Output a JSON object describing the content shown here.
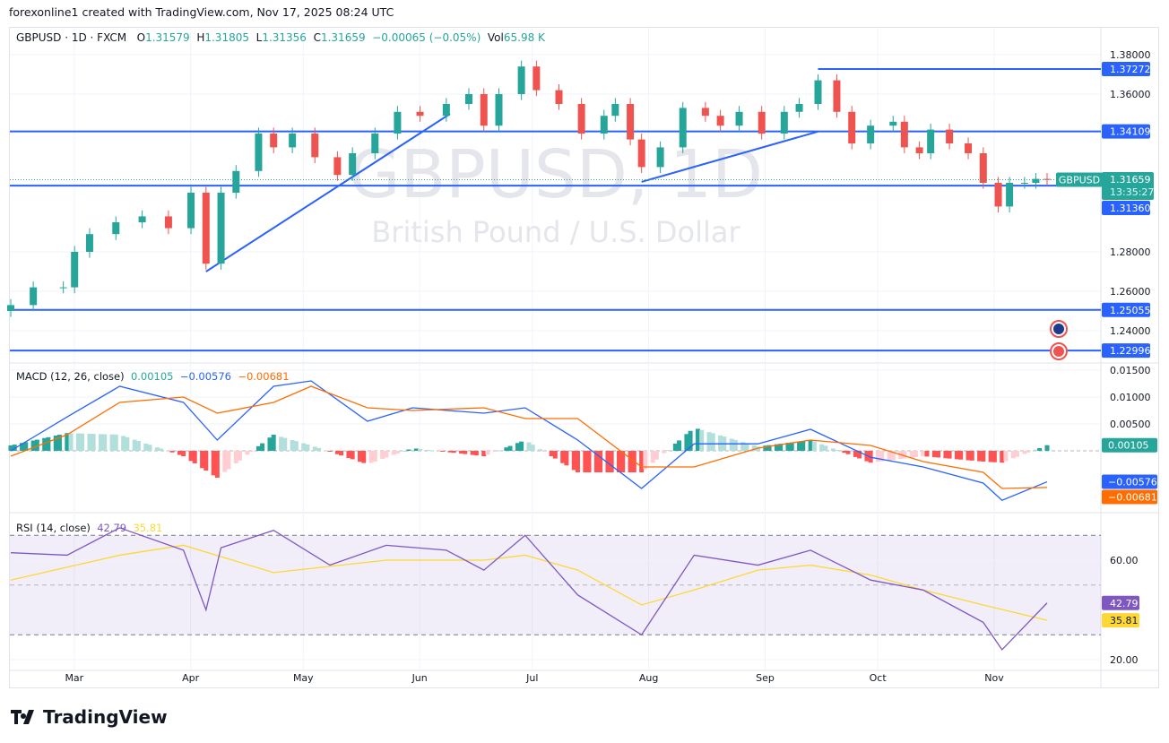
{
  "header": {
    "caption": "forexonline1 created with TradingView.com, Nov 17, 2025 08:24 UTC"
  },
  "legend": {
    "symbol": "GBPUSD · 1D · FXCM",
    "o_label": "O",
    "o": "1.31579",
    "h_label": "H",
    "h": "1.31805",
    "l_label": "L",
    "l": "1.31356",
    "c_label": "C",
    "c": "1.31659",
    "change": "−0.00065 (−0.05%)",
    "vol_label": "Vol",
    "vol": "65.98 K"
  },
  "watermark": {
    "title": "GBPUSD, 1D",
    "subtitle": "British Pound / U.S. Dollar"
  },
  "logo": {
    "text": "TradingView"
  },
  "colors": {
    "up": "#26a69a",
    "down": "#ef5350",
    "drawing": "#2962ff",
    "macd": "#2962ff",
    "signal": "#ff6d00",
    "rsi": "#7e57c2",
    "rsi_ma": "#fdd835"
  },
  "chart_data": [
    {
      "type": "candlestick",
      "pane": "price",
      "ylim": [
        1.22,
        1.385
      ],
      "yticks": [
        "1.38000",
        "1.36000",
        "1.28000",
        "1.26000",
        "1.24000"
      ],
      "xticks": [
        "Mar",
        "Apr",
        "May",
        "Jun",
        "Jul",
        "Aug",
        "Sep",
        "Oct",
        "Nov"
      ],
      "dates": [
        "2025-02-14",
        "2025-02-20",
        "2025-02-28",
        "2025-03-03",
        "2025-03-07",
        "2025-03-14",
        "2025-03-21",
        "2025-03-28",
        "2025-04-03",
        "2025-04-07",
        "2025-04-11",
        "2025-04-15",
        "2025-04-21",
        "2025-04-25",
        "2025-04-30",
        "2025-05-06",
        "2025-05-12",
        "2025-05-16",
        "2025-05-22",
        "2025-05-28",
        "2025-06-03",
        "2025-06-10",
        "2025-06-16",
        "2025-06-20",
        "2025-06-24",
        "2025-06-30",
        "2025-07-04",
        "2025-07-10",
        "2025-07-16",
        "2025-07-22",
        "2025-07-25",
        "2025-07-29",
        "2025-08-01",
        "2025-08-06",
        "2025-08-12",
        "2025-08-18",
        "2025-08-22",
        "2025-08-27",
        "2025-09-02",
        "2025-09-08",
        "2025-09-12",
        "2025-09-17",
        "2025-09-22",
        "2025-09-26",
        "2025-10-01",
        "2025-10-07",
        "2025-10-10",
        "2025-10-14",
        "2025-10-17",
        "2025-10-22",
        "2025-10-27",
        "2025-10-31",
        "2025-11-04",
        "2025-11-07",
        "2025-11-11",
        "2025-11-14",
        "2025-11-17"
      ],
      "close": [
        1.253,
        1.262,
        1.262,
        1.28,
        1.289,
        1.295,
        1.298,
        1.292,
        1.31,
        1.274,
        1.31,
        1.321,
        1.34,
        1.333,
        1.34,
        1.328,
        1.319,
        1.33,
        1.34,
        1.351,
        1.349,
        1.355,
        1.36,
        1.344,
        1.36,
        1.374,
        1.362,
        1.355,
        1.34,
        1.349,
        1.355,
        1.337,
        1.323,
        1.333,
        1.353,
        1.349,
        1.344,
        1.351,
        1.34,
        1.351,
        1.355,
        1.367,
        1.351,
        1.335,
        1.344,
        1.346,
        1.333,
        1.33,
        1.342,
        1.335,
        1.33,
        1.315,
        1.303,
        1.315,
        1.315,
        1.317,
        1.31659
      ],
      "last_price": {
        "symbol": "GBPUSD",
        "price": "1.31659",
        "countdown": "13:35:27"
      },
      "horizontal_lines": [
        {
          "price": 1.37272,
          "label": "1.37272",
          "from": "2025-09-17"
        },
        {
          "price": 1.34109,
          "label": "1.34109"
        },
        {
          "price": 1.3136,
          "label": "1.31360"
        },
        {
          "price": 1.25055,
          "label": "1.25055"
        },
        {
          "price": 1.22996,
          "label": "1.22996"
        }
      ],
      "trend_lines": [
        {
          "from": [
            "2025-04-07",
            1.27
          ],
          "to": [
            "2025-06-11",
            1.35
          ]
        },
        {
          "from": [
            "2025-08-01",
            1.3155
          ],
          "to": [
            "2025-09-17",
            1.341
          ]
        }
      ],
      "event_icons": [
        "uk-flag-icon",
        "us-flag-icon"
      ]
    },
    {
      "type": "line",
      "pane": "macd",
      "title": "MACD (12, 26, close)",
      "ylim": [
        -0.0105,
        0.0165
      ],
      "yticks": [
        "0.01500",
        "0.01000",
        "0.00500"
      ],
      "values_label": {
        "hist": "0.00105",
        "macd": "−0.00576",
        "signal": "−0.00681"
      },
      "dates": [
        "2025-02-14",
        "2025-03-01",
        "2025-03-15",
        "2025-04-01",
        "2025-04-10",
        "2025-04-25",
        "2025-05-05",
        "2025-05-20",
        "2025-06-01",
        "2025-06-20",
        "2025-07-01",
        "2025-07-15",
        "2025-08-01",
        "2025-08-15",
        "2025-09-01",
        "2025-09-15",
        "2025-10-01",
        "2025-10-15",
        "2025-10-31",
        "2025-11-05",
        "2025-11-17"
      ],
      "macd": [
        0,
        0.0063,
        0.012,
        0.009,
        0.002,
        0.012,
        0.013,
        0.0055,
        0.008,
        0.007,
        0.008,
        0.002,
        -0.007,
        0.0013,
        0.0013,
        0.004,
        -0.0012,
        -0.003,
        -0.006,
        -0.0092,
        -0.00576
      ],
      "signal": [
        -0.001,
        0.003,
        0.009,
        0.01,
        0.007,
        0.009,
        0.012,
        0.008,
        0.0075,
        0.008,
        0.006,
        0.006,
        -0.003,
        -0.003,
        0.0005,
        0.002,
        0.001,
        -0.002,
        -0.004,
        -0.007,
        -0.00681
      ]
    },
    {
      "type": "line",
      "pane": "rsi",
      "title": "RSI (14, close)",
      "ylim": [
        15,
        84
      ],
      "yticks": [
        "60.00",
        "20.00"
      ],
      "bands": [
        70,
        50,
        30
      ],
      "values_label": {
        "rsi": "42.79",
        "ma": "35.81"
      },
      "rsi_dates": [
        "2025-02-14",
        "2025-03-01",
        "2025-03-15",
        "2025-04-01",
        "2025-04-07",
        "2025-04-11",
        "2025-04-25",
        "2025-05-10",
        "2025-05-25",
        "2025-06-10",
        "2025-06-20",
        "2025-07-01",
        "2025-07-15",
        "2025-08-01",
        "2025-08-15",
        "2025-09-01",
        "2025-09-15",
        "2025-10-01",
        "2025-10-15",
        "2025-10-31",
        "2025-11-05",
        "2025-11-17"
      ],
      "rsi": [
        63,
        62,
        73,
        64,
        40,
        65,
        72,
        58,
        66,
        64,
        56,
        70,
        46,
        30,
        62,
        58,
        64,
        52,
        48,
        35,
        24,
        42.79
      ],
      "ma_dates": [
        "2025-02-14",
        "2025-03-15",
        "2025-04-01",
        "2025-04-25",
        "2025-05-25",
        "2025-06-20",
        "2025-07-01",
        "2025-07-15",
        "2025-08-01",
        "2025-08-15",
        "2025-09-01",
        "2025-09-15",
        "2025-10-01",
        "2025-10-15",
        "2025-10-31",
        "2025-11-17"
      ],
      "ma": [
        52,
        62,
        66,
        55,
        60,
        60,
        62,
        56,
        42,
        48,
        56,
        58,
        54,
        48,
        42,
        35.81
      ]
    }
  ]
}
